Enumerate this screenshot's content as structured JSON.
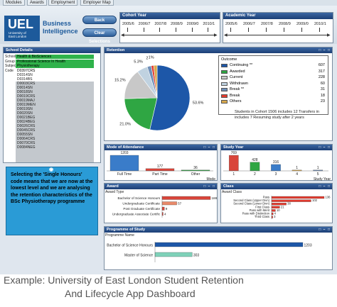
{
  "tabs": [
    "Modules",
    "Awards",
    "Employment",
    "Employer Map"
  ],
  "logo": {
    "initials": "UEL",
    "subtitle": "University of East London"
  },
  "brand": "Business Intelligence",
  "buttons": {
    "back": "Back",
    "clear": "Clear Selections"
  },
  "cohort_year": {
    "title": "Cohort Year",
    "years": [
      "2005/6",
      "2006/7",
      "2007/8",
      "2008/9",
      "2009/0",
      "2010/1"
    ]
  },
  "academic_year": {
    "title": "Academic Year",
    "years": [
      "2005/6",
      "2006/7",
      "2007/8",
      "2008/9",
      "2009/0",
      "2010/1"
    ]
  },
  "school_details": {
    "title": "School Details",
    "fields": [
      {
        "label": "School",
        "value": "Health & BioSciences"
      },
      {
        "label": "Group",
        "value": "Professional Science In Health"
      },
      {
        "label": "Subject",
        "value": "Physiotherapy"
      },
      {
        "label": "Code",
        "value": "D0397CRS"
      }
    ],
    "codes": [
      "D0314SN",
      "D0314BS",
      "D0003CRS",
      "D0014SN",
      "D0018SN",
      "D0019CRS",
      "D0019MAJ",
      "D0019MEN",
      "D0019SN",
      "D0020SN",
      "D0021BEG",
      "D0024BEG",
      "D0026CRS",
      "D0045CRS",
      "D0055SN",
      "D0064CRS",
      "D0070CRS",
      "D0084NEG"
    ]
  },
  "callout": {
    "text": "Selecting the 'Single Honours' code means that we are now at the lowest level and we are analysing the retention characteristics of the BSc Physiotherapy programme",
    "icon": "pin-icon"
  },
  "retention": {
    "title": "Retention"
  },
  "outcome_legend": {
    "title": "Outcome",
    "rows": [
      {
        "label": "Continuing **",
        "value": "607",
        "color": "#1d57a8"
      },
      {
        "label": "Awarded",
        "value": "317",
        "color": "#2fa643"
      },
      {
        "label": "Current",
        "value": "228",
        "color": "#c8c8c8"
      },
      {
        "label": "Withdrawn",
        "value": "60",
        "color": "#c0d2e0"
      },
      {
        "label": "Break **",
        "value": "31",
        "color": "#6f8fb8"
      },
      {
        "label": "Break",
        "value": "18",
        "color": "#e23b2f"
      },
      {
        "label": "Others",
        "value": "23",
        "color": "#d9a94c"
      }
    ]
  },
  "cohort_note": "Students in Cohort 1506 includes 12 Transfers in includes 7 Resuming study after 2 years",
  "mode_of_attendance": {
    "title": "Mode of Attendance",
    "axis_label": "Mode"
  },
  "study_year": {
    "title": "Study Year",
    "axis_label": "Study Year"
  },
  "award": {
    "title": "Award",
    "subtitle": "Award Type"
  },
  "class": {
    "title": "Class",
    "subtitle": "Award Class"
  },
  "programme_of_study": {
    "title": "Programme of Study",
    "subtitle": "Programme Name"
  },
  "caption": {
    "line1": "Example: University of East London Student Retention",
    "line2": "And Lifecycle App Dashboard"
  },
  "chart_data": [
    {
      "type": "pie",
      "title": "Retention",
      "labels": [
        "Continuing **",
        "Awarded",
        "Current",
        "Withdrawn",
        "Break **",
        "Break",
        "Others"
      ],
      "values": [
        53.6,
        21.0,
        15.2,
        5.3,
        2.0,
        1.2,
        1.7
      ],
      "data_labels": [
        "53.6%",
        "21.0%",
        "15.2%",
        "5.3%",
        "2",
        "1%",
        ""
      ],
      "colors": [
        "#1d57a8",
        "#2fa643",
        "#c8c8c8",
        "#c0d2e0",
        "#6f8fb8",
        "#e23b2f",
        "#d9a94c"
      ]
    },
    {
      "type": "bar",
      "title": "Mode of Attendance",
      "categories": [
        "Full Time",
        "Part Time",
        "Other"
      ],
      "values": [
        1203,
        177,
        36
      ],
      "colors": [
        "#3a7cc9",
        "#d9453a",
        "#2fa643"
      ]
    },
    {
      "type": "bar",
      "title": "Study Year",
      "categories": [
        "1",
        "2",
        "3",
        "4",
        "5"
      ],
      "values": [
        769,
        428,
        316,
        1,
        1
      ],
      "colors": [
        "#d9453a",
        "#2fa643",
        "#3a7cc9",
        "#d9a94c",
        "#6f8fb8"
      ]
    },
    {
      "type": "bar",
      "orientation": "horizontal",
      "title": "Award",
      "categories": [
        "Bachelor of Science Honours",
        "Undergraduate Certificate",
        "Post Graduate Certificate",
        "Undergraduate Associate Certific"
      ],
      "values": [
        188,
        57,
        9,
        4
      ],
      "value_labels": [
        "188",
        "57",
        "9",
        "4"
      ],
      "colors": [
        "#d9453a",
        "#e88a6a",
        "#d9453a",
        "#d9453a"
      ]
    },
    {
      "type": "bar",
      "orientation": "horizontal",
      "title": "Class",
      "categories": [
        "Pass",
        "Second Class (Upper Divn)",
        "Second Class (Lower Divn)",
        "First Class",
        "Pass with Merit",
        "Pass with Distinction",
        "Third Class"
      ],
      "values": [
        136,
        102,
        38,
        21,
        10,
        4,
        3
      ],
      "colors": [
        "#e23b2f",
        "#e23b2f",
        "#e23b2f",
        "#e23b2f",
        "#e23b2f",
        "#e23b2f",
        "#e23b2f"
      ]
    },
    {
      "type": "bar",
      "orientation": "horizontal",
      "title": "Programme of Study",
      "categories": [
        "Bachelor of Science Honours",
        "Master of Science"
      ],
      "values": [
        1203,
        303
      ],
      "colors": [
        "#1d57a8",
        "#7fd1b9"
      ]
    }
  ]
}
